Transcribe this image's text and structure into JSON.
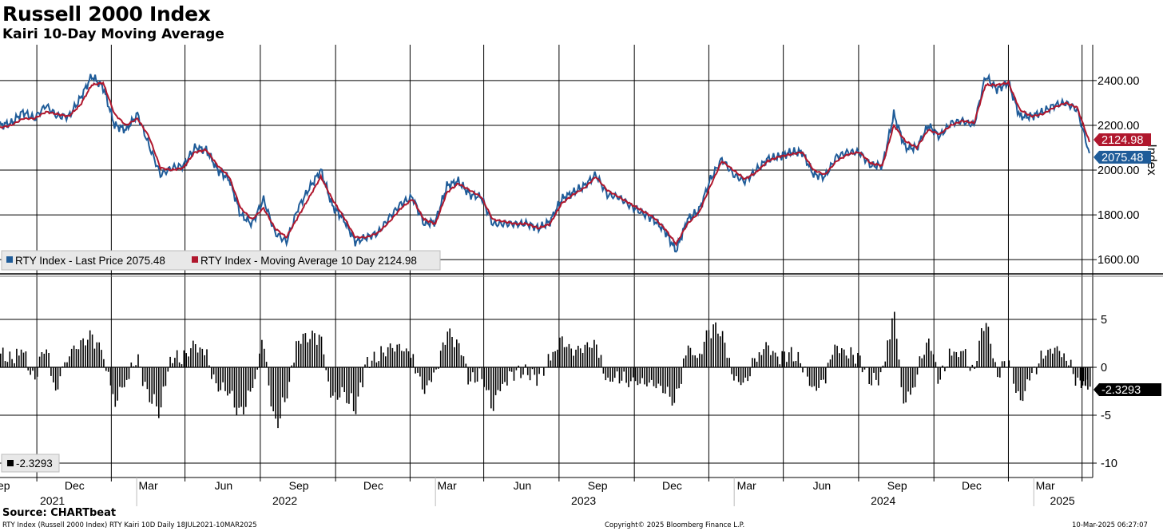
{
  "header": {
    "title": "Russell 2000 Index",
    "subtitle": "Kairi 10-Day Moving Average"
  },
  "footer": {
    "source": "Source: CHARTbeat",
    "description": "RTY Index (Russell 2000 Index) RTY Kairi 10D  Daily 18JUL2021-10MAR2025",
    "copyright": "Copyright© 2025 Bloomberg Finance L.P.",
    "timestamp": "10-Mar-2025 06:27:07"
  },
  "colors": {
    "price": "#1f5c99",
    "moving_average": "#b0172d",
    "kairi": "#000000",
    "grid": "#000000"
  },
  "chart_data": [
    {
      "type": "line",
      "ylabel": "Index",
      "ylim": [
        1540,
        2560
      ],
      "yticks": [
        1600,
        1800,
        2000,
        2200,
        2400
      ],
      "ytick_labels": [
        "1600.00",
        "1800.00",
        "2000.00",
        "2200.00",
        "2400.00"
      ],
      "x": [
        "2021-07-18",
        "2021-08-01",
        "2021-08-15",
        "2021-08-29",
        "2021-09-12",
        "2021-09-26",
        "2021-10-10",
        "2021-10-24",
        "2021-11-07",
        "2021-11-21",
        "2021-12-05",
        "2021-12-19",
        "2022-01-02",
        "2022-01-16",
        "2022-01-30",
        "2022-02-13",
        "2022-02-27",
        "2022-03-13",
        "2022-03-27",
        "2022-04-10",
        "2022-04-24",
        "2022-05-08",
        "2022-05-22",
        "2022-06-05",
        "2022-06-19",
        "2022-07-03",
        "2022-07-17",
        "2022-07-31",
        "2022-08-14",
        "2022-08-28",
        "2022-09-11",
        "2022-09-25",
        "2022-10-09",
        "2022-10-23",
        "2022-11-06",
        "2022-11-20",
        "2022-12-04",
        "2022-12-18",
        "2023-01-01",
        "2023-01-15",
        "2023-01-29",
        "2023-02-12",
        "2023-02-26",
        "2023-03-12",
        "2023-03-26",
        "2023-04-09",
        "2023-04-23",
        "2023-05-07",
        "2023-05-21",
        "2023-06-04",
        "2023-06-18",
        "2023-07-02",
        "2023-07-16",
        "2023-07-30",
        "2023-08-13",
        "2023-08-27",
        "2023-09-10",
        "2023-09-24",
        "2023-10-08",
        "2023-10-22",
        "2023-11-05",
        "2023-11-19",
        "2023-12-03",
        "2023-12-17",
        "2023-12-31",
        "2024-01-14",
        "2024-01-28",
        "2024-02-11",
        "2024-02-25",
        "2024-03-10",
        "2024-03-24",
        "2024-04-07",
        "2024-04-21",
        "2024-05-05",
        "2024-05-19",
        "2024-06-02",
        "2024-06-16",
        "2024-06-30",
        "2024-07-14",
        "2024-07-28",
        "2024-08-11",
        "2024-08-25",
        "2024-09-08",
        "2024-09-22",
        "2024-10-06",
        "2024-10-20",
        "2024-11-03",
        "2024-11-17",
        "2024-12-01",
        "2024-12-15",
        "2024-12-29",
        "2025-01-12",
        "2025-01-26",
        "2025-02-09",
        "2025-02-23",
        "2025-03-10"
      ],
      "series": [
        {
          "name": "RTY Index - Last Price",
          "last_value": "2075.48",
          "values": [
            2200,
            2210,
            2260,
            2230,
            2290,
            2240,
            2240,
            2320,
            2420,
            2370,
            2200,
            2180,
            2250,
            2110,
            1980,
            2010,
            2020,
            2100,
            2090,
            2000,
            1960,
            1800,
            1760,
            1870,
            1720,
            1680,
            1830,
            1920,
            2000,
            1840,
            1780,
            1680,
            1700,
            1720,
            1790,
            1850,
            1880,
            1760,
            1770,
            1930,
            1950,
            1890,
            1880,
            1760,
            1760,
            1760,
            1760,
            1740,
            1770,
            1870,
            1900,
            1930,
            1980,
            1890,
            1880,
            1840,
            1810,
            1780,
            1730,
            1640,
            1780,
            1820,
            1960,
            2050,
            1980,
            1950,
            2000,
            2050,
            2060,
            2080,
            2080,
            1980,
            1970,
            2060,
            2080,
            2080,
            2020,
            2020,
            2250,
            2100,
            2100,
            2200,
            2150,
            2210,
            2220,
            2200,
            2420,
            2360,
            2390,
            2240,
            2240,
            2260,
            2290,
            2300,
            2270,
            2075.48
          ]
        },
        {
          "name": "RTY Index - Moving Average 10 Day",
          "last_value": "2124.98",
          "values": [
            2190,
            2200,
            2230,
            2230,
            2260,
            2250,
            2240,
            2290,
            2380,
            2390,
            2250,
            2200,
            2230,
            2150,
            2010,
            2000,
            2010,
            2080,
            2090,
            2020,
            1970,
            1830,
            1780,
            1830,
            1740,
            1700,
            1790,
            1880,
            1970,
            1870,
            1790,
            1700,
            1700,
            1720,
            1770,
            1830,
            1870,
            1780,
            1760,
            1900,
            1940,
            1910,
            1880,
            1780,
            1770,
            1760,
            1760,
            1740,
            1760,
            1850,
            1890,
            1920,
            1970,
            1910,
            1880,
            1850,
            1820,
            1790,
            1740,
            1670,
            1760,
            1810,
            1930,
            2040,
            2000,
            1960,
            1990,
            2040,
            2060,
            2070,
            2080,
            2000,
            1980,
            2040,
            2070,
            2080,
            2030,
            2020,
            2200,
            2130,
            2100,
            2180,
            2160,
            2200,
            2220,
            2210,
            2380,
            2380,
            2390,
            2270,
            2240,
            2250,
            2280,
            2300,
            2280,
            2124.98
          ]
        }
      ]
    },
    {
      "type": "bar",
      "ylim": [
        -11.5,
        9.5
      ],
      "yticks": [
        -10,
        -5,
        0,
        5
      ],
      "ytick_labels": [
        "-10",
        "-5",
        "0",
        "5"
      ],
      "series": [
        {
          "name": "",
          "last_value": "-2.3293",
          "values": [
            1.5,
            0.8,
            2.0,
            -1.5,
            2.5,
            -3.0,
            1.8,
            2.8,
            4.0,
            2.0,
            -4.5,
            -1.8,
            1.2,
            -3.5,
            -5.5,
            1.2,
            0.8,
            3.0,
            1.5,
            -2.5,
            -3.0,
            -6.0,
            -2.8,
            3.5,
            -7.5,
            -4.0,
            3.5,
            3.8,
            4.0,
            -4.0,
            -3.0,
            -5.5,
            0.5,
            1.0,
            2.5,
            2.5,
            1.5,
            -3.0,
            -1.0,
            4.5,
            3.0,
            -1.5,
            -0.8,
            -5.0,
            -1.5,
            -0.5,
            -0.5,
            -1.2,
            0.8,
            3.5,
            2.0,
            2.5,
            3.0,
            -2.0,
            -1.0,
            -1.5,
            -2.0,
            -2.0,
            -2.8,
            -4.5,
            2.5,
            1.2,
            5.0,
            4.5,
            -1.5,
            -2.0,
            1.2,
            2.8,
            1.0,
            1.5,
            0.5,
            -3.0,
            -1.5,
            2.8,
            1.5,
            1.0,
            -1.5,
            -1.0,
            7.0,
            -5.0,
            -1.0,
            3.5,
            -1.5,
            1.5,
            2.0,
            -0.8,
            6.5,
            -1.0,
            1.0,
            -4.5,
            -1.2,
            1.2,
            2.5,
            1.5,
            -1.5,
            -2.3293
          ]
        }
      ]
    },
    {
      "type": "axis",
      "x_month_labels": [
        {
          "label": "Sep",
          "date": "2021-09-01"
        },
        {
          "label": "Dec",
          "date": "2021-12-01"
        },
        {
          "label": "Mar",
          "date": "2022-03-01"
        },
        {
          "label": "Jun",
          "date": "2022-06-01"
        },
        {
          "label": "Sep",
          "date": "2022-09-01"
        },
        {
          "label": "Dec",
          "date": "2022-12-01"
        },
        {
          "label": "Mar",
          "date": "2023-03-01"
        },
        {
          "label": "Jun",
          "date": "2023-06-01"
        },
        {
          "label": "Sep",
          "date": "2023-09-01"
        },
        {
          "label": "Dec",
          "date": "2023-12-01"
        },
        {
          "label": "Mar",
          "date": "2024-03-01"
        },
        {
          "label": "Jun",
          "date": "2024-06-01"
        },
        {
          "label": "Sep",
          "date": "2024-09-01"
        },
        {
          "label": "Dec",
          "date": "2024-12-01"
        },
        {
          "label": "Mar",
          "date": "2025-03-01"
        }
      ],
      "x_year_labels": [
        {
          "label": "2021",
          "center": "2021-09-20",
          "end": "2022-01-01"
        },
        {
          "label": "2022",
          "center": "2022-07-01",
          "end": "2023-01-01"
        },
        {
          "label": "2023",
          "center": "2023-07-01",
          "end": "2024-01-01"
        },
        {
          "label": "2024",
          "center": "2024-07-01",
          "end": "2025-01-01"
        },
        {
          "label": "2025",
          "center": "2025-02-05",
          "end": ""
        }
      ],
      "grid": true
    }
  ]
}
